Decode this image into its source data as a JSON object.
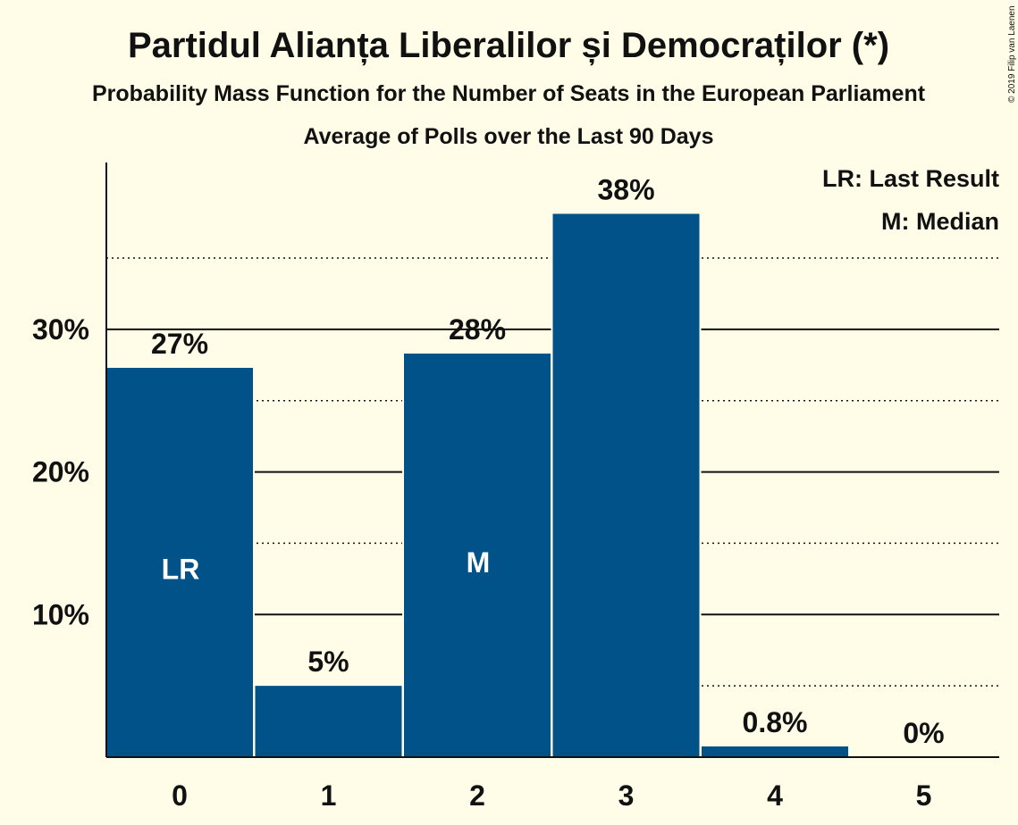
{
  "chart_data": {
    "type": "bar",
    "title": "Partidul Alianța Liberalilor și Democraților (*)",
    "subtitle": "Probability Mass Function for the Number of Seats in the European Parliament",
    "subtitle2": "Average of Polls over the Last 90 Days",
    "copyright": "© 2019 Filip van Laenen",
    "categories": [
      "0",
      "1",
      "2",
      "3",
      "4",
      "5"
    ],
    "values": [
      27.3,
      5.0,
      28.3,
      38.1,
      0.75,
      0.0
    ],
    "value_labels": [
      "27%",
      "5%",
      "28%",
      "38%",
      "0.8%",
      "0%"
    ],
    "bar_markers": [
      "LR",
      "",
      "M",
      "",
      "",
      ""
    ],
    "y_ticks": [
      10,
      20,
      30
    ],
    "y_tick_labels": [
      "10%",
      "20%",
      "30%"
    ],
    "y_minor_ticks": [
      5,
      15,
      25,
      35
    ],
    "ylim": [
      0,
      41.7
    ],
    "legend": [
      "LR: Last Result",
      "M: Median"
    ],
    "legend_position": "top-right",
    "colors": {
      "bar": "#005288",
      "background": "#fffde8",
      "text": "#111111",
      "marker_text": "#ffffff"
    }
  }
}
